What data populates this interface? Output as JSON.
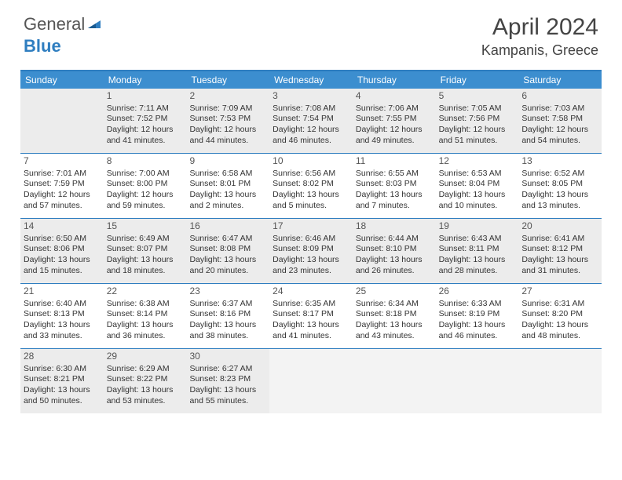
{
  "brand": {
    "text1": "General",
    "text2": "Blue"
  },
  "title": "April 2024",
  "location": "Kampanis, Greece",
  "colors": {
    "header_bg": "#3c8ecf",
    "border": "#2f7ec0",
    "shaded": "#ececec",
    "trailing": "#f3f3f3",
    "text": "#333333"
  },
  "dayNames": [
    "Sunday",
    "Monday",
    "Tuesday",
    "Wednesday",
    "Thursday",
    "Friday",
    "Saturday"
  ],
  "weeks": [
    [
      {
        "num": "",
        "lines": [],
        "shaded": true
      },
      {
        "num": "1",
        "lines": [
          "Sunrise: 7:11 AM",
          "Sunset: 7:52 PM",
          "Daylight: 12 hours",
          "and 41 minutes."
        ],
        "shaded": true
      },
      {
        "num": "2",
        "lines": [
          "Sunrise: 7:09 AM",
          "Sunset: 7:53 PM",
          "Daylight: 12 hours",
          "and 44 minutes."
        ],
        "shaded": true
      },
      {
        "num": "3",
        "lines": [
          "Sunrise: 7:08 AM",
          "Sunset: 7:54 PM",
          "Daylight: 12 hours",
          "and 46 minutes."
        ],
        "shaded": true
      },
      {
        "num": "4",
        "lines": [
          "Sunrise: 7:06 AM",
          "Sunset: 7:55 PM",
          "Daylight: 12 hours",
          "and 49 minutes."
        ],
        "shaded": true
      },
      {
        "num": "5",
        "lines": [
          "Sunrise: 7:05 AM",
          "Sunset: 7:56 PM",
          "Daylight: 12 hours",
          "and 51 minutes."
        ],
        "shaded": true
      },
      {
        "num": "6",
        "lines": [
          "Sunrise: 7:03 AM",
          "Sunset: 7:58 PM",
          "Daylight: 12 hours",
          "and 54 minutes."
        ],
        "shaded": true
      }
    ],
    [
      {
        "num": "7",
        "lines": [
          "Sunrise: 7:01 AM",
          "Sunset: 7:59 PM",
          "Daylight: 12 hours",
          "and 57 minutes."
        ]
      },
      {
        "num": "8",
        "lines": [
          "Sunrise: 7:00 AM",
          "Sunset: 8:00 PM",
          "Daylight: 12 hours",
          "and 59 minutes."
        ]
      },
      {
        "num": "9",
        "lines": [
          "Sunrise: 6:58 AM",
          "Sunset: 8:01 PM",
          "Daylight: 13 hours",
          "and 2 minutes."
        ]
      },
      {
        "num": "10",
        "lines": [
          "Sunrise: 6:56 AM",
          "Sunset: 8:02 PM",
          "Daylight: 13 hours",
          "and 5 minutes."
        ]
      },
      {
        "num": "11",
        "lines": [
          "Sunrise: 6:55 AM",
          "Sunset: 8:03 PM",
          "Daylight: 13 hours",
          "and 7 minutes."
        ]
      },
      {
        "num": "12",
        "lines": [
          "Sunrise: 6:53 AM",
          "Sunset: 8:04 PM",
          "Daylight: 13 hours",
          "and 10 minutes."
        ]
      },
      {
        "num": "13",
        "lines": [
          "Sunrise: 6:52 AM",
          "Sunset: 8:05 PM",
          "Daylight: 13 hours",
          "and 13 minutes."
        ]
      }
    ],
    [
      {
        "num": "14",
        "lines": [
          "Sunrise: 6:50 AM",
          "Sunset: 8:06 PM",
          "Daylight: 13 hours",
          "and 15 minutes."
        ],
        "shaded": true
      },
      {
        "num": "15",
        "lines": [
          "Sunrise: 6:49 AM",
          "Sunset: 8:07 PM",
          "Daylight: 13 hours",
          "and 18 minutes."
        ],
        "shaded": true
      },
      {
        "num": "16",
        "lines": [
          "Sunrise: 6:47 AM",
          "Sunset: 8:08 PM",
          "Daylight: 13 hours",
          "and 20 minutes."
        ],
        "shaded": true
      },
      {
        "num": "17",
        "lines": [
          "Sunrise: 6:46 AM",
          "Sunset: 8:09 PM",
          "Daylight: 13 hours",
          "and 23 minutes."
        ],
        "shaded": true
      },
      {
        "num": "18",
        "lines": [
          "Sunrise: 6:44 AM",
          "Sunset: 8:10 PM",
          "Daylight: 13 hours",
          "and 26 minutes."
        ],
        "shaded": true
      },
      {
        "num": "19",
        "lines": [
          "Sunrise: 6:43 AM",
          "Sunset: 8:11 PM",
          "Daylight: 13 hours",
          "and 28 minutes."
        ],
        "shaded": true
      },
      {
        "num": "20",
        "lines": [
          "Sunrise: 6:41 AM",
          "Sunset: 8:12 PM",
          "Daylight: 13 hours",
          "and 31 minutes."
        ],
        "shaded": true
      }
    ],
    [
      {
        "num": "21",
        "lines": [
          "Sunrise: 6:40 AM",
          "Sunset: 8:13 PM",
          "Daylight: 13 hours",
          "and 33 minutes."
        ]
      },
      {
        "num": "22",
        "lines": [
          "Sunrise: 6:38 AM",
          "Sunset: 8:14 PM",
          "Daylight: 13 hours",
          "and 36 minutes."
        ]
      },
      {
        "num": "23",
        "lines": [
          "Sunrise: 6:37 AM",
          "Sunset: 8:16 PM",
          "Daylight: 13 hours",
          "and 38 minutes."
        ]
      },
      {
        "num": "24",
        "lines": [
          "Sunrise: 6:35 AM",
          "Sunset: 8:17 PM",
          "Daylight: 13 hours",
          "and 41 minutes."
        ]
      },
      {
        "num": "25",
        "lines": [
          "Sunrise: 6:34 AM",
          "Sunset: 8:18 PM",
          "Daylight: 13 hours",
          "and 43 minutes."
        ]
      },
      {
        "num": "26",
        "lines": [
          "Sunrise: 6:33 AM",
          "Sunset: 8:19 PM",
          "Daylight: 13 hours",
          "and 46 minutes."
        ]
      },
      {
        "num": "27",
        "lines": [
          "Sunrise: 6:31 AM",
          "Sunset: 8:20 PM",
          "Daylight: 13 hours",
          "and 48 minutes."
        ]
      }
    ],
    [
      {
        "num": "28",
        "lines": [
          "Sunrise: 6:30 AM",
          "Sunset: 8:21 PM",
          "Daylight: 13 hours",
          "and 50 minutes."
        ],
        "shaded": true
      },
      {
        "num": "29",
        "lines": [
          "Sunrise: 6:29 AM",
          "Sunset: 8:22 PM",
          "Daylight: 13 hours",
          "and 53 minutes."
        ],
        "shaded": true
      },
      {
        "num": "30",
        "lines": [
          "Sunrise: 6:27 AM",
          "Sunset: 8:23 PM",
          "Daylight: 13 hours",
          "and 55 minutes."
        ],
        "shaded": true
      },
      {
        "num": "",
        "lines": [],
        "trailing": true
      },
      {
        "num": "",
        "lines": [],
        "trailing": true
      },
      {
        "num": "",
        "lines": [],
        "trailing": true
      },
      {
        "num": "",
        "lines": [],
        "trailing": true
      }
    ]
  ]
}
